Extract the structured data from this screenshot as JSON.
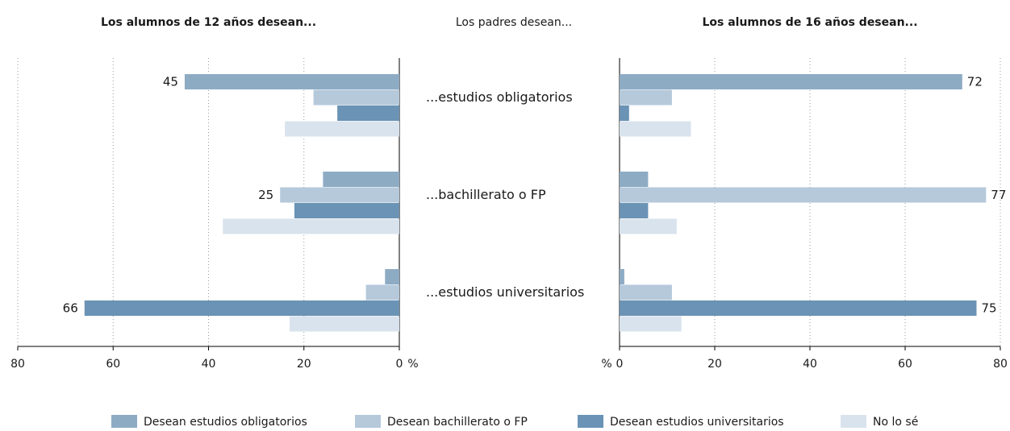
{
  "chart_data": {
    "type": "bar",
    "orientation": "horizontal",
    "title": "Los padres desean...",
    "categories": [
      "...estudios obligatorios",
      "...bachillerato o FP",
      "...estudios  universitarios"
    ],
    "series": [
      {
        "name": "Desean estudios obligatorios",
        "color": "#8eabc4"
      },
      {
        "name": "Desean bachillerato o FP",
        "color": "#b5c9db"
      },
      {
        "name": "Desean estudios universitarios",
        "color": "#6a93b5"
      },
      {
        "name": "No lo sé",
        "color": "#d9e3ed"
      }
    ],
    "panels": [
      {
        "title": "Los alumnos de 12 años desean...",
        "reversed": true,
        "xlim": [
          0,
          80
        ],
        "xticks": [
          0,
          20,
          40,
          60,
          80
        ],
        "axis_unit": "%",
        "grid": true,
        "series": [
          {
            "values": [
              45,
              16,
              3
            ],
            "value_labels": [
              "45",
              null,
              null
            ]
          },
          {
            "values": [
              18,
              25,
              7
            ],
            "value_labels": [
              null,
              "25",
              null
            ]
          },
          {
            "values": [
              13,
              22,
              66
            ],
            "value_labels": [
              null,
              null,
              "66"
            ]
          },
          {
            "values": [
              24,
              37,
              23
            ],
            "value_labels": [
              null,
              null,
              null
            ]
          }
        ]
      },
      {
        "title": "Los alumnos de 16 años desean...",
        "reversed": false,
        "xlim": [
          0,
          80
        ],
        "xticks": [
          0,
          20,
          40,
          60,
          80
        ],
        "axis_unit": "%",
        "grid": true,
        "series": [
          {
            "values": [
              72,
              6,
              1
            ],
            "value_labels": [
              "72",
              null,
              null
            ]
          },
          {
            "values": [
              11,
              77,
              11
            ],
            "value_labels": [
              null,
              "77",
              null
            ]
          },
          {
            "values": [
              2,
              6,
              75
            ],
            "value_labels": [
              null,
              null,
              "75"
            ]
          },
          {
            "values": [
              15,
              12,
              13
            ],
            "value_labels": [
              null,
              null,
              null
            ]
          }
        ]
      }
    ]
  }
}
